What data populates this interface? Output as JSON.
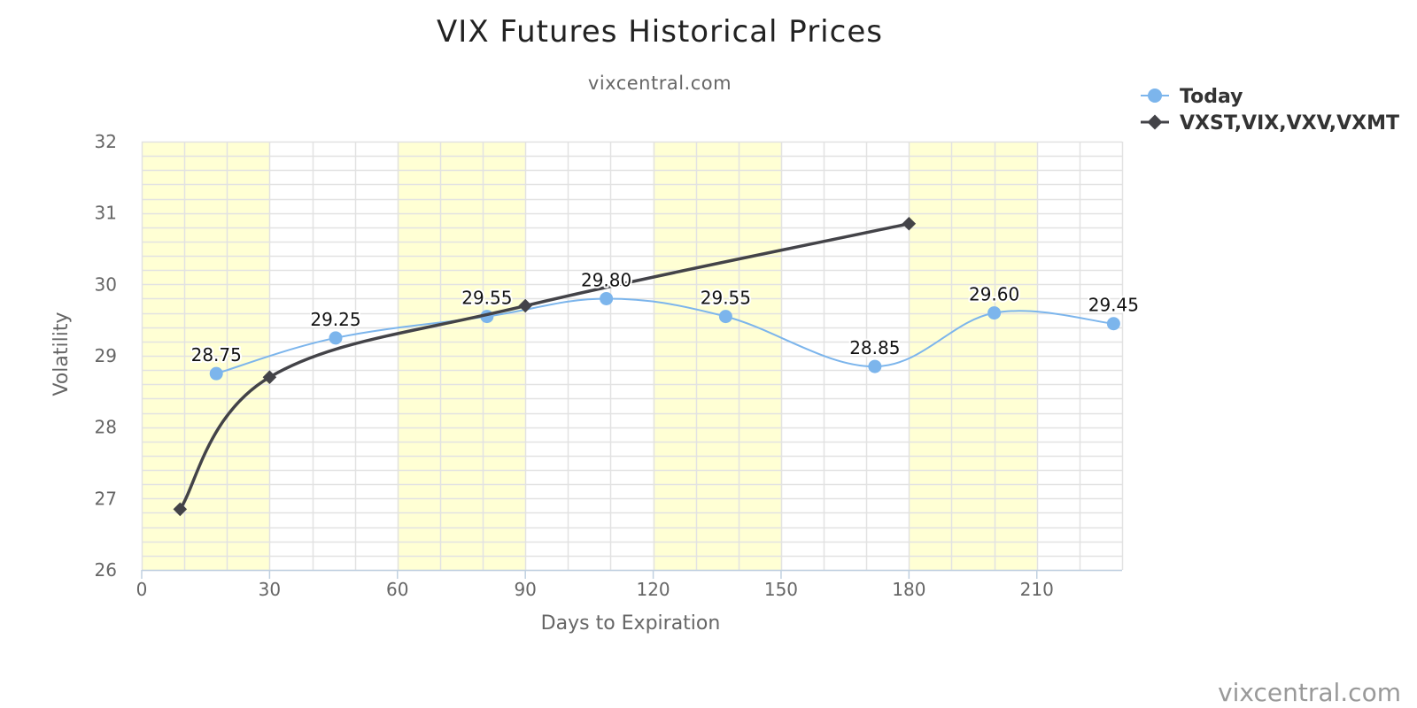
{
  "chart_data": {
    "type": "line",
    "title": "VIX Futures Historical Prices",
    "subtitle": "vixcentral.com",
    "xlabel": "Days to Expiration",
    "ylabel": "Volatility",
    "xlim": [
      0,
      230
    ],
    "ylim": [
      26,
      32
    ],
    "x_ticks": [
      0,
      30,
      60,
      90,
      120,
      150,
      180,
      210
    ],
    "y_ticks": [
      26,
      27,
      28,
      29,
      30,
      31,
      32
    ],
    "grid": true,
    "plot_bands_x": [
      [
        0,
        30
      ],
      [
        60,
        90
      ],
      [
        120,
        150
      ],
      [
        180,
        210
      ]
    ],
    "plot_band_color": "#ffffd4",
    "legend_position": "top-right",
    "series": [
      {
        "name": "Today",
        "color": "#7cb5ec",
        "marker": "circle",
        "smooth": true,
        "data_labels": true,
        "points": [
          {
            "x": 17.5,
            "y": 28.75,
            "label": "28.75"
          },
          {
            "x": 45.5,
            "y": 29.25,
            "label": "29.25"
          },
          {
            "x": 81,
            "y": 29.55,
            "label": "29.55"
          },
          {
            "x": 109,
            "y": 29.8,
            "label": "29.80"
          },
          {
            "x": 137,
            "y": 29.55,
            "label": "29.55"
          },
          {
            "x": 172,
            "y": 28.85,
            "label": "28.85"
          },
          {
            "x": 200,
            "y": 29.6,
            "label": "29.60"
          },
          {
            "x": 228,
            "y": 29.45,
            "label": "29.45"
          }
        ]
      },
      {
        "name": "VXST,VIX,VXV,VXMT",
        "color": "#434348",
        "marker": "diamond",
        "smooth": true,
        "data_labels": false,
        "points": [
          {
            "x": 9,
            "y": 26.85
          },
          {
            "x": 30,
            "y": 28.7
          },
          {
            "x": 90,
            "y": 29.7
          },
          {
            "x": 180,
            "y": 30.85
          }
        ]
      }
    ]
  },
  "credit": "vixcentral.com"
}
